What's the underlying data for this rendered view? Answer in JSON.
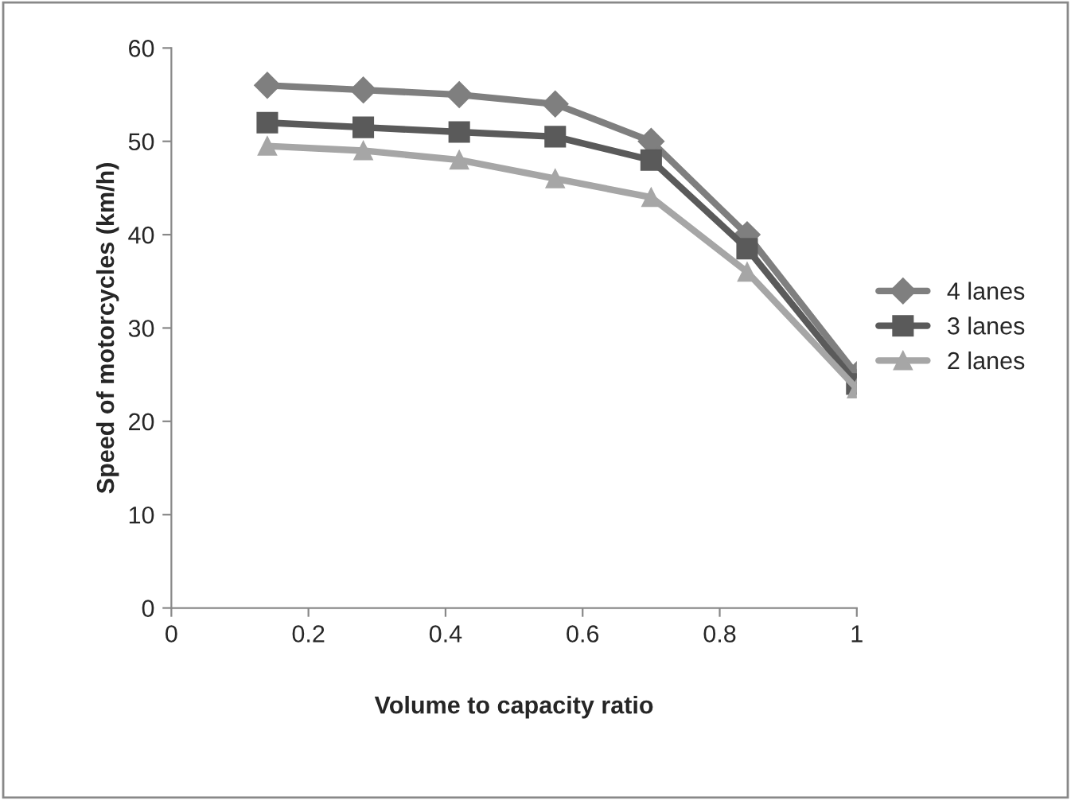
{
  "chart_data": {
    "type": "line",
    "xlabel": "Volume to capacity ratio",
    "ylabel": "Speed of motorcycles (km/h)",
    "x": [
      0.14,
      0.28,
      0.42,
      0.56,
      0.7,
      0.84,
      1
    ],
    "series": [
      {
        "name": "4 lanes",
        "color": "#7f7f7f",
        "marker": "diamond",
        "values": [
          56,
          55.5,
          55,
          54,
          50,
          40,
          25
        ]
      },
      {
        "name": "3 lanes",
        "color": "#5a5a5a",
        "marker": "square",
        "values": [
          52,
          51.5,
          51,
          50.5,
          48,
          38.5,
          24
        ]
      },
      {
        "name": "2 lanes",
        "color": "#a6a6a6",
        "marker": "triangle",
        "values": [
          49.5,
          49,
          48,
          46,
          44,
          36,
          23.5
        ]
      }
    ],
    "xlim": [
      0,
      1
    ],
    "xticks": [
      0,
      0.2,
      0.4,
      0.6,
      0.8,
      1
    ],
    "ylim": [
      0,
      60
    ],
    "yticks": [
      0,
      10,
      20,
      30,
      40,
      50,
      60
    ],
    "grid": false,
    "legend": "right",
    "line_style": "solid"
  }
}
